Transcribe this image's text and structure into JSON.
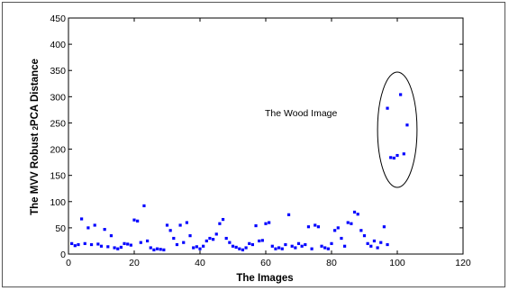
{
  "chart_data": {
    "type": "scatter",
    "title": "",
    "xlabel": "The Images",
    "ylabel": "The MVV Robust",
    "ylabel_subscript": "2",
    "ylabel_suffix": "PCA Distance",
    "xlim": [
      0,
      120
    ],
    "ylim": [
      0,
      450
    ],
    "xticks": [
      0,
      20,
      40,
      60,
      80,
      100,
      120
    ],
    "yticks": [
      0,
      50,
      100,
      150,
      200,
      250,
      300,
      350,
      400,
      450
    ],
    "grid": false,
    "marker_color": "#0000ff",
    "annotation": {
      "text": "The Wood Image",
      "ellipse_center": [
        100,
        237
      ],
      "ellipse_radius": [
        6,
        110
      ]
    },
    "series": [
      {
        "points": [
          [
            1,
            20
          ],
          [
            2,
            16
          ],
          [
            3,
            18
          ],
          [
            4,
            67
          ],
          [
            5,
            20
          ],
          [
            6,
            50
          ],
          [
            7,
            18
          ],
          [
            8,
            55
          ],
          [
            9,
            19
          ],
          [
            10,
            15
          ],
          [
            11,
            47
          ],
          [
            12,
            14
          ],
          [
            13,
            35
          ],
          [
            14,
            12
          ],
          [
            15,
            10
          ],
          [
            16,
            13
          ],
          [
            17,
            20
          ],
          [
            18,
            19
          ],
          [
            19,
            17
          ],
          [
            20,
            65
          ],
          [
            21,
            63
          ],
          [
            22,
            22
          ],
          [
            23,
            92
          ],
          [
            24,
            25
          ],
          [
            25,
            12
          ],
          [
            26,
            8
          ],
          [
            27,
            10
          ],
          [
            28,
            9
          ],
          [
            29,
            8
          ],
          [
            30,
            55
          ],
          [
            31,
            45
          ],
          [
            32,
            30
          ],
          [
            33,
            18
          ],
          [
            34,
            55
          ],
          [
            35,
            22
          ],
          [
            36,
            60
          ],
          [
            37,
            35
          ],
          [
            38,
            12
          ],
          [
            39,
            14
          ],
          [
            40,
            10
          ],
          [
            41,
            15
          ],
          [
            42,
            25
          ],
          [
            43,
            30
          ],
          [
            44,
            28
          ],
          [
            45,
            38
          ],
          [
            46,
            58
          ],
          [
            47,
            66
          ],
          [
            48,
            30
          ],
          [
            49,
            22
          ],
          [
            50,
            15
          ],
          [
            51,
            13
          ],
          [
            52,
            10
          ],
          [
            53,
            8
          ],
          [
            54,
            12
          ],
          [
            55,
            20
          ],
          [
            56,
            18
          ],
          [
            57,
            54
          ],
          [
            58,
            25
          ],
          [
            59,
            26
          ],
          [
            60,
            58
          ],
          [
            61,
            60
          ],
          [
            62,
            15
          ],
          [
            63,
            10
          ],
          [
            64,
            12
          ],
          [
            65,
            10
          ],
          [
            66,
            18
          ],
          [
            67,
            75
          ],
          [
            68,
            15
          ],
          [
            69,
            12
          ],
          [
            70,
            20
          ],
          [
            71,
            15
          ],
          [
            72,
            18
          ],
          [
            73,
            52
          ],
          [
            74,
            10
          ],
          [
            75,
            55
          ],
          [
            76,
            52
          ],
          [
            77,
            15
          ],
          [
            78,
            12
          ],
          [
            79,
            10
          ],
          [
            80,
            20
          ],
          [
            81,
            45
          ],
          [
            82,
            50
          ],
          [
            83,
            30
          ],
          [
            84,
            15
          ],
          [
            85,
            60
          ],
          [
            86,
            58
          ],
          [
            87,
            80
          ],
          [
            88,
            76
          ],
          [
            89,
            45
          ],
          [
            90,
            35
          ],
          [
            91,
            20
          ],
          [
            92,
            15
          ],
          [
            93,
            25
          ],
          [
            94,
            12
          ],
          [
            95,
            22
          ],
          [
            96,
            52
          ],
          [
            97,
            18
          ],
          [
            97,
            278
          ],
          [
            98,
            184
          ],
          [
            99,
            183
          ],
          [
            100,
            188
          ],
          [
            101,
            304
          ],
          [
            102,
            191
          ],
          [
            103,
            246
          ]
        ]
      }
    ]
  }
}
